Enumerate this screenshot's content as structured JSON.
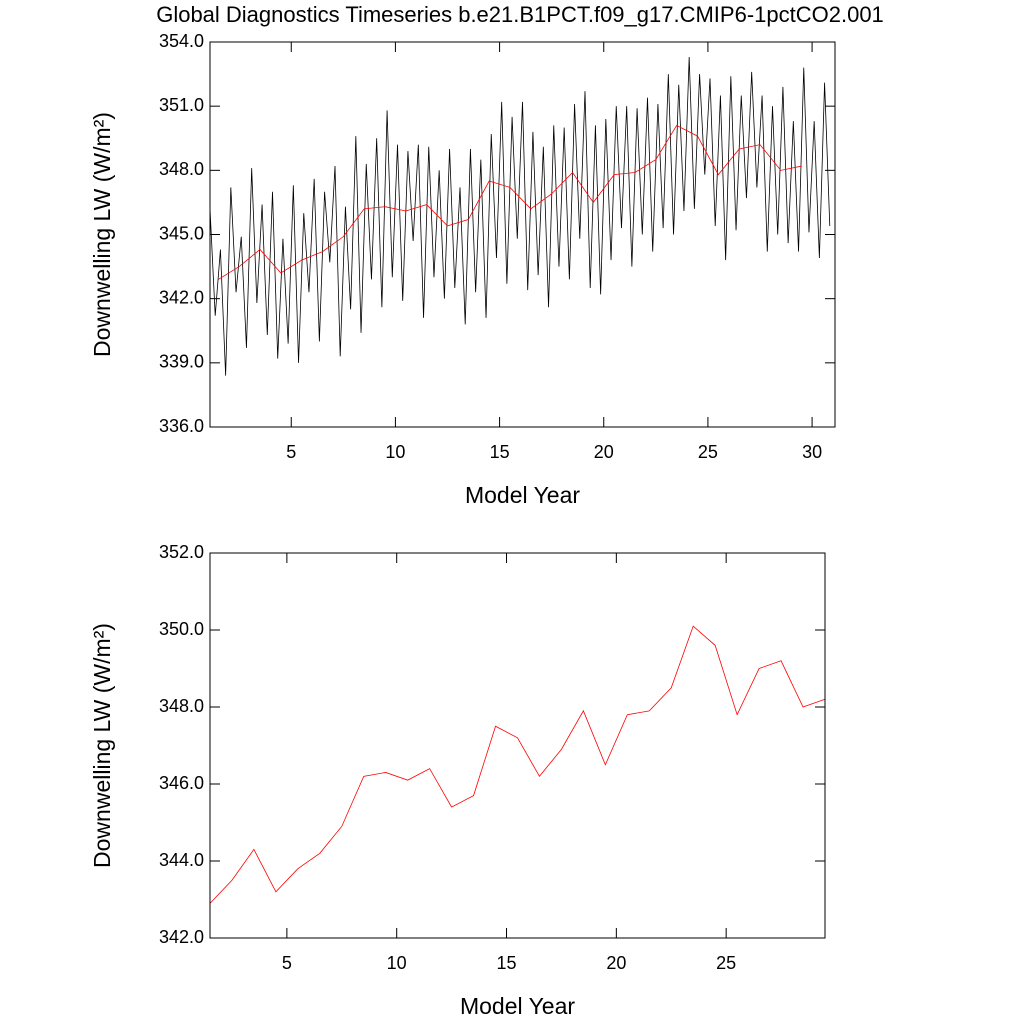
{
  "chart_data": [
    {
      "type": "line",
      "title": "Global Diagnostics Timeseries b.e21.B1PCT.f09_g17.CMIP6-1pctCO2.001",
      "xlabel": "Model Year",
      "ylabel": "Downwelling LW (W/m²)",
      "xlim": [
        1.1,
        31.1
      ],
      "xticks": [
        5,
        10,
        15,
        20,
        25,
        30
      ],
      "ylim": [
        336,
        354
      ],
      "yticks": [
        {
          "value": 336,
          "label": "336.0"
        },
        {
          "value": 339,
          "label": "339.0"
        },
        {
          "value": 342,
          "label": "342.0"
        },
        {
          "value": 345,
          "label": "345.0"
        },
        {
          "value": 348,
          "label": "348.0"
        },
        {
          "value": 351,
          "label": "351.0"
        },
        {
          "value": 354,
          "label": "354.0"
        }
      ],
      "series": [
        {
          "color": "#000000",
          "x": [
            1.1,
            1.35,
            1.6,
            1.85,
            2.1,
            2.35,
            2.6,
            2.85,
            3.1,
            3.35,
            3.6,
            3.85,
            4.1,
            4.35,
            4.6,
            4.85,
            5.1,
            5.35,
            5.6,
            5.85,
            6.1,
            6.35,
            6.6,
            6.85,
            7.1,
            7.35,
            7.6,
            7.85,
            8.1,
            8.35,
            8.6,
            8.85,
            9.1,
            9.35,
            9.6,
            9.85,
            10.1,
            10.35,
            10.6,
            10.85,
            11.1,
            11.35,
            11.6,
            11.85,
            12.1,
            12.35,
            12.6,
            12.85,
            13.1,
            13.35,
            13.6,
            13.85,
            14.1,
            14.35,
            14.6,
            14.85,
            15.1,
            15.35,
            15.6,
            15.85,
            16.1,
            16.35,
            16.6,
            16.85,
            17.1,
            17.35,
            17.6,
            17.85,
            18.1,
            18.35,
            18.6,
            18.85,
            19.1,
            19.35,
            19.6,
            19.85,
            20.1,
            20.35,
            20.6,
            20.85,
            21.1,
            21.35,
            21.6,
            21.85,
            22.1,
            22.35,
            22.6,
            22.85,
            23.1,
            23.35,
            23.6,
            23.85,
            24.1,
            24.35,
            24.6,
            24.85,
            25.1,
            25.35,
            25.6,
            25.85,
            26.1,
            26.35,
            26.6,
            26.85,
            27.1,
            27.35,
            27.6,
            27.85,
            28.1,
            28.35,
            28.6,
            28.85,
            29.1,
            29.35,
            29.6,
            29.85,
            30.1,
            30.35,
            30.6,
            30.85
          ],
          "values": [
            346.2,
            341.2,
            344.3,
            338.4,
            347.2,
            342.3,
            344.9,
            339.7,
            348.1,
            341.8,
            346.4,
            340.3,
            347.0,
            339.2,
            344.8,
            339.9,
            347.3,
            339.0,
            346.0,
            342.3,
            347.6,
            340.0,
            347.0,
            343.7,
            348.2,
            339.3,
            346.3,
            341.5,
            349.6,
            340.4,
            348.3,
            342.9,
            349.5,
            341.6,
            350.8,
            343.0,
            349.2,
            341.9,
            348.9,
            344.7,
            349.2,
            341.1,
            349.1,
            343.0,
            348.0,
            342.0,
            349.0,
            342.5,
            347.2,
            340.8,
            349.0,
            342.3,
            348.5,
            341.1,
            349.7,
            343.9,
            351.2,
            342.7,
            350.5,
            344.8,
            351.2,
            342.4,
            349.8,
            343.1,
            349.1,
            341.6,
            350.1,
            343.5,
            350.0,
            342.9,
            351.1,
            344.8,
            351.7,
            342.5,
            350.1,
            342.2,
            350.4,
            343.8,
            351.0,
            345.3,
            351.0,
            343.5,
            350.9,
            345.0,
            351.4,
            344.2,
            351.1,
            345.3,
            352.5,
            345.0,
            352.0,
            346.1,
            353.3,
            346.2,
            352.5,
            347.8,
            352.3,
            345.4,
            351.5,
            343.8,
            352.4,
            345.2,
            351.5,
            346.7,
            352.6,
            347.2,
            351.5,
            344.2,
            351.0,
            345.0,
            351.9,
            344.6,
            350.3,
            344.2,
            352.8,
            345.1,
            350.3,
            343.9,
            352.1,
            345.4
          ]
        },
        {
          "color": "#ff0000",
          "x": [
            1.5,
            2.5,
            3.5,
            4.5,
            5.5,
            6.5,
            7.5,
            8.5,
            9.5,
            10.5,
            11.5,
            12.5,
            13.5,
            14.5,
            15.5,
            16.5,
            17.5,
            18.5,
            19.5,
            20.5,
            21.5,
            22.5,
            23.5,
            24.5,
            25.5,
            26.5,
            27.5,
            28.5,
            29.5
          ],
          "values": [
            342.9,
            343.5,
            344.3,
            343.2,
            343.8,
            344.2,
            344.9,
            346.2,
            346.3,
            346.1,
            346.4,
            345.4,
            345.7,
            347.5,
            347.2,
            346.2,
            346.9,
            347.9,
            346.5,
            347.8,
            347.9,
            348.5,
            350.1,
            349.6,
            347.8,
            349.0,
            349.2,
            348.0,
            348.2
          ]
        }
      ]
    },
    {
      "type": "line",
      "xlabel": "Model Year",
      "ylabel": "Downwelling LW (W/m²)",
      "xlim": [
        1.5,
        29.5
      ],
      "xticks": [
        5,
        10,
        15,
        20,
        25
      ],
      "ylim": [
        342,
        352
      ],
      "yticks": [
        {
          "value": 342,
          "label": "342.0"
        },
        {
          "value": 344,
          "label": "344.0"
        },
        {
          "value": 346,
          "label": "346.0"
        },
        {
          "value": 348,
          "label": "348.0"
        },
        {
          "value": 350,
          "label": "350.0"
        },
        {
          "value": 352,
          "label": "352.0"
        }
      ],
      "series": [
        {
          "color": "#ff0000",
          "x": [
            1.5,
            2.5,
            3.5,
            4.5,
            5.5,
            6.5,
            7.5,
            8.5,
            9.5,
            10.5,
            11.5,
            12.5,
            13.5,
            14.5,
            15.5,
            16.5,
            17.5,
            18.5,
            19.5,
            20.5,
            21.5,
            22.5,
            23.5,
            24.5,
            25.5,
            26.5,
            27.5,
            28.5,
            29.5
          ],
          "values": [
            342.9,
            343.5,
            344.3,
            343.2,
            343.8,
            344.2,
            344.9,
            346.2,
            346.3,
            346.1,
            346.4,
            345.4,
            345.7,
            347.5,
            347.2,
            346.2,
            346.9,
            347.9,
            346.5,
            347.8,
            347.9,
            348.5,
            350.1,
            349.6,
            347.8,
            349.0,
            349.2,
            348.0,
            348.2
          ]
        }
      ]
    }
  ]
}
